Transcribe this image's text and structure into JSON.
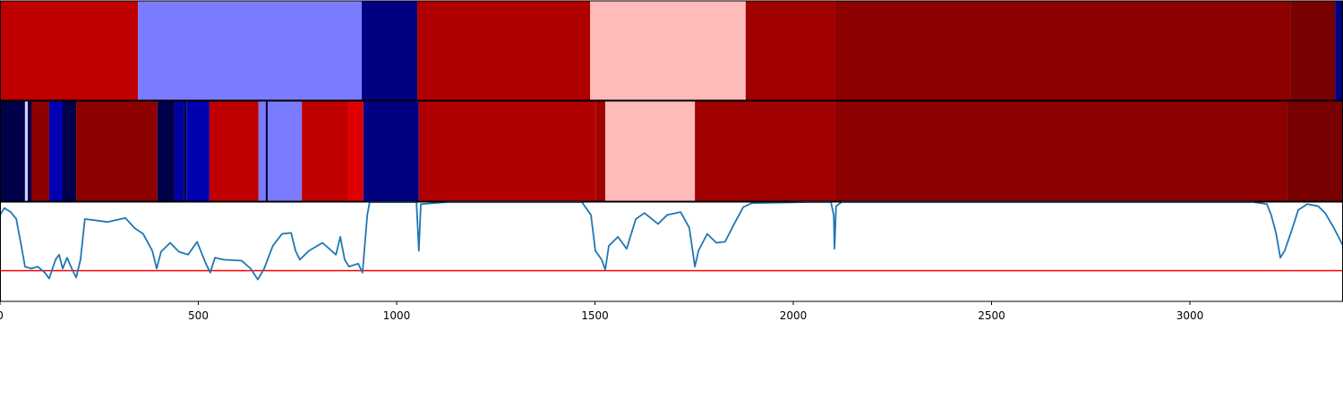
{
  "chart_data": {
    "type": "segments",
    "xlim": [
      0,
      3386
    ],
    "xticks": [
      0,
      500,
      1000,
      1500,
      2000,
      2500,
      3000
    ],
    "tracks": [
      {
        "segments": [
          {
            "start": 0,
            "end": 348,
            "color": "#c00000"
          },
          {
            "start": 348,
            "end": 912,
            "color": "#7b7bff"
          },
          {
            "start": 912,
            "end": 1052,
            "color": "#000080"
          },
          {
            "start": 1052,
            "end": 1488,
            "color": "#b00000"
          },
          {
            "start": 1488,
            "end": 1880,
            "color": "#ffbaba"
          },
          {
            "start": 1880,
            "end": 2106,
            "color": "#a00000"
          },
          {
            "start": 2106,
            "end": 3253,
            "color": "#8c0000"
          },
          {
            "start": 3253,
            "end": 3366,
            "color": "#780000"
          },
          {
            "start": 3366,
            "end": 3386,
            "color": "#000080"
          }
        ]
      },
      {
        "segments": [
          {
            "start": 0,
            "end": 63,
            "color": "#00004a"
          },
          {
            "start": 63,
            "end": 70,
            "color": "#d0d0ff"
          },
          {
            "start": 70,
            "end": 79,
            "color": "#00004a"
          },
          {
            "start": 79,
            "end": 124,
            "color": "#8c0000"
          },
          {
            "start": 124,
            "end": 158,
            "color": "#0000b0"
          },
          {
            "start": 158,
            "end": 192,
            "color": "#00004a"
          },
          {
            "start": 192,
            "end": 397,
            "color": "#8c0000"
          },
          {
            "start": 397,
            "end": 440,
            "color": "#00004a"
          },
          {
            "start": 440,
            "end": 463,
            "color": "#0000a0"
          },
          {
            "start": 463,
            "end": 470,
            "color": "#00004a"
          },
          {
            "start": 470,
            "end": 528,
            "color": "#0000b0"
          },
          {
            "start": 528,
            "end": 652,
            "color": "#c00000"
          },
          {
            "start": 652,
            "end": 670,
            "color": "#7b7bff"
          },
          {
            "start": 670,
            "end": 675,
            "color": "#00004a"
          },
          {
            "start": 675,
            "end": 761,
            "color": "#7b7bff"
          },
          {
            "start": 761,
            "end": 878,
            "color": "#c00000"
          },
          {
            "start": 878,
            "end": 916,
            "color": "#e00000"
          },
          {
            "start": 916,
            "end": 1056,
            "color": "#000080"
          },
          {
            "start": 1056,
            "end": 1503,
            "color": "#b00000"
          },
          {
            "start": 1503,
            "end": 1526,
            "color": "#a00000"
          },
          {
            "start": 1526,
            "end": 1752,
            "color": "#ffbaba"
          },
          {
            "start": 1752,
            "end": 2106,
            "color": "#a00000"
          },
          {
            "start": 2106,
            "end": 3244,
            "color": "#8c0000"
          },
          {
            "start": 3244,
            "end": 3386,
            "color": "#780000"
          }
        ]
      }
    ],
    "line": {
      "color": "#1f77b4",
      "ylim": [
        0,
        1
      ],
      "x": [
        0,
        11,
        27,
        41,
        56,
        63,
        79,
        95,
        113,
        124,
        140,
        149,
        158,
        169,
        181,
        192,
        203,
        214,
        271,
        316,
        339,
        361,
        384,
        395,
        406,
        429,
        451,
        474,
        497,
        519,
        530,
        542,
        564,
        609,
        632,
        650,
        666,
        688,
        711,
        734,
        745,
        756,
        779,
        813,
        847,
        858,
        869,
        880,
        903,
        914,
        926,
        932,
        1050,
        1056,
        1061,
        1129,
        1467,
        1490,
        1501,
        1517,
        1526,
        1535,
        1558,
        1580,
        1603,
        1625,
        1659,
        1682,
        1716,
        1738,
        1752,
        1761,
        1783,
        1806,
        1828,
        1851,
        1874,
        1896,
        2032,
        2095,
        2102,
        2104,
        2108,
        2122,
        3160,
        3194,
        3205,
        3217,
        3228,
        3239,
        3251,
        3262,
        3273,
        3296,
        3323,
        3341,
        3363,
        3386
      ],
      "values": [
        0.87,
        0.94,
        0.9,
        0.83,
        0.51,
        0.35,
        0.33,
        0.35,
        0.29,
        0.23,
        0.42,
        0.47,
        0.33,
        0.44,
        0.33,
        0.24,
        0.42,
        0.83,
        0.8,
        0.84,
        0.74,
        0.68,
        0.51,
        0.33,
        0.5,
        0.59,
        0.5,
        0.47,
        0.6,
        0.38,
        0.29,
        0.44,
        0.42,
        0.41,
        0.33,
        0.22,
        0.33,
        0.56,
        0.68,
        0.69,
        0.51,
        0.42,
        0.51,
        0.59,
        0.47,
        0.65,
        0.42,
        0.35,
        0.38,
        0.29,
        0.87,
        1,
        1,
        0.51,
        0.98,
        1,
        1,
        0.87,
        0.51,
        0.42,
        0.32,
        0.56,
        0.65,
        0.53,
        0.83,
        0.89,
        0.78,
        0.87,
        0.9,
        0.74,
        0.35,
        0.51,
        0.68,
        0.59,
        0.6,
        0.78,
        0.95,
        0.99,
        1,
        1,
        0.87,
        0.53,
        0.96,
        1,
        1,
        0.98,
        0.87,
        0.69,
        0.44,
        0.51,
        0.65,
        0.78,
        0.92,
        0.98,
        0.96,
        0.89,
        0.74,
        0.56
      ]
    },
    "threshold": {
      "value": 0.31,
      "color": "#ff0000"
    }
  }
}
